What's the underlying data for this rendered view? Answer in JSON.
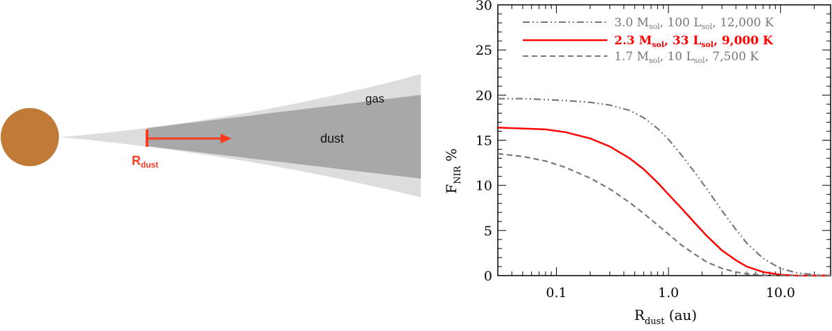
{
  "diagram": {
    "star_color": "#c07a36",
    "gas_label": "gas",
    "dust_label": "dust",
    "rdust_main": "R",
    "rdust_sub": "dust",
    "arrow_color": "#ff3b1f",
    "gas_color": "#dcdddf",
    "dust_color": "#a7a9a9"
  },
  "chart_data": {
    "type": "line",
    "title": "",
    "xlabel_main": "R",
    "xlabel_sub": "dust",
    "xlabel_unit": " (au)",
    "ylabel_main": "F",
    "ylabel_sub": "NIR",
    "ylabel_unit": " %",
    "xscale": "log",
    "xlim": [
      0.03,
      28
    ],
    "ylim": [
      0,
      30
    ],
    "xticks": [
      {
        "value": 0.1,
        "label": "0.1"
      },
      {
        "value": 1.0,
        "label": "1.0"
      },
      {
        "value": 10.0,
        "label": "10.0"
      }
    ],
    "yticks": [
      {
        "value": 0,
        "label": "0"
      },
      {
        "value": 5,
        "label": "5"
      },
      {
        "value": 10,
        "label": "10"
      },
      {
        "value": 15,
        "label": "15"
      },
      {
        "value": 20,
        "label": "20"
      },
      {
        "value": 25,
        "label": "25"
      },
      {
        "value": 30,
        "label": "30"
      }
    ],
    "grid": false,
    "legend_position": "top-right",
    "series": [
      {
        "legend": {
          "mass": "3.0 M",
          "mass_sub": "sol",
          "lum": "100 L",
          "lum_sub": "sol",
          "temp": "12,000 K",
          "sep": ","
        },
        "color": "#777777",
        "dash": "dash-dot-dot",
        "x": [
          0.03,
          0.05,
          0.08,
          0.12,
          0.2,
          0.3,
          0.45,
          0.6,
          0.8,
          1.0,
          1.3,
          1.7,
          2.2,
          3.0,
          4.0,
          5.0,
          7.0,
          10.0,
          14.0,
          20.0,
          28.0
        ],
        "y": [
          19.6,
          19.6,
          19.5,
          19.4,
          19.2,
          18.9,
          18.3,
          17.5,
          16.3,
          15.1,
          13.4,
          11.5,
          9.6,
          7.2,
          5.1,
          3.6,
          1.9,
          0.8,
          0.3,
          0.1,
          0.0
        ]
      },
      {
        "legend": {
          "mass": "2.3 M",
          "mass_sub": "sol",
          "lum": "33 L",
          "lum_sub": "sol",
          "temp": "9,000 K",
          "sep": ","
        },
        "color": "#ff0000",
        "dash": "solid",
        "x": [
          0.03,
          0.05,
          0.08,
          0.12,
          0.2,
          0.3,
          0.45,
          0.6,
          0.8,
          1.0,
          1.3,
          1.7,
          2.2,
          3.0,
          4.0,
          5.0,
          7.0,
          10.0,
          14.0,
          20.0,
          28.0
        ],
        "y": [
          16.4,
          16.3,
          16.2,
          15.9,
          15.2,
          14.3,
          13.0,
          11.8,
          10.3,
          9.0,
          7.5,
          5.9,
          4.4,
          2.8,
          1.7,
          1.0,
          0.4,
          0.1,
          0.0,
          0.0,
          0.0
        ]
      },
      {
        "legend": {
          "mass": "1.7 M",
          "mass_sub": "sol",
          "lum": "10 L",
          "lum_sub": "sol",
          "temp": "7,500 K",
          "sep": ","
        },
        "color": "#777777",
        "dash": "dashed",
        "x": [
          0.03,
          0.05,
          0.08,
          0.12,
          0.2,
          0.3,
          0.45,
          0.6,
          0.8,
          1.0,
          1.3,
          1.7,
          2.2,
          3.0,
          4.0,
          5.0,
          7.0,
          10.0,
          14.0,
          20.0,
          28.0
        ],
        "y": [
          13.5,
          13.2,
          12.7,
          12.0,
          10.8,
          9.6,
          8.1,
          6.9,
          5.6,
          4.6,
          3.4,
          2.4,
          1.5,
          0.8,
          0.4,
          0.2,
          0.05,
          0.0,
          0.0,
          0.0,
          0.0
        ]
      }
    ]
  }
}
